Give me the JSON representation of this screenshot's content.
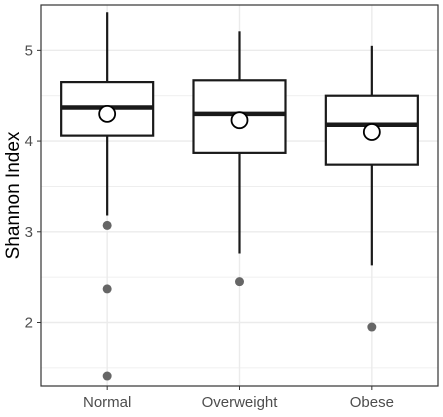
{
  "chart_data": {
    "type": "boxplot",
    "title": "",
    "xlabel": "",
    "ylabel": "Shannon Index",
    "ylim": [
      1.3,
      5.5
    ],
    "yticks": [
      2,
      3,
      4,
      5
    ],
    "grid": true,
    "categories": [
      "Normal",
      "Overweight",
      "Obese"
    ],
    "boxes": [
      {
        "category": "Normal",
        "whisker_low": 3.18,
        "q1": 4.06,
        "median": 4.37,
        "q3": 4.65,
        "whisker_high": 5.42,
        "mean": 4.3,
        "outliers": [
          3.07,
          2.37,
          1.41
        ]
      },
      {
        "category": "Overweight",
        "whisker_low": 2.76,
        "q1": 3.87,
        "median": 4.3,
        "q3": 4.67,
        "whisker_high": 5.21,
        "mean": 4.23,
        "outliers": [
          2.45
        ]
      },
      {
        "category": "Obese",
        "whisker_low": 2.63,
        "q1": 3.74,
        "median": 4.18,
        "q3": 4.5,
        "whisker_high": 5.05,
        "mean": 4.1,
        "outliers": [
          1.95
        ]
      }
    ],
    "colors": {
      "panel_border": "#333333",
      "grid": "#ebebeb",
      "box": "#1a1a1a",
      "outlier": "#666666",
      "mean_fill": "#ffffff",
      "tick_text": "#4d4d4d"
    }
  }
}
